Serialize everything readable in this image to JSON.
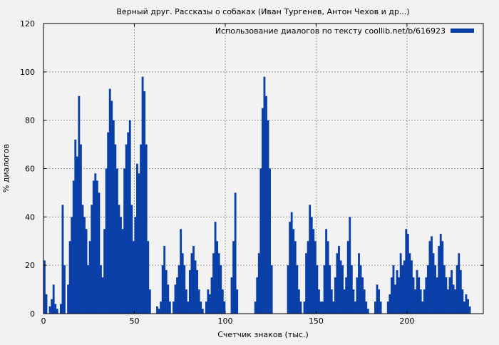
{
  "chart_data": {
    "type": "bar",
    "title": "Верный друг. Рассказы о собаках (Иван Тургенев, Антон Чехов и др...)",
    "xlabel": "Счетчик знаков (тыс.)",
    "ylabel": "% диалогов",
    "xlim": [
      0,
      242
    ],
    "ylim": [
      0,
      120
    ],
    "xticks": [
      0,
      50,
      100,
      150,
      200
    ],
    "yticks": [
      0,
      20,
      40,
      60,
      80,
      100,
      120
    ],
    "grid": true,
    "legend_position": "top-right",
    "bar_color": "#0b3fa8",
    "series": [
      {
        "name": "Использование диалогов по тексту coollib.net/b/616923",
        "x_start": 0,
        "x_step": 1,
        "values": [
          22,
          8,
          0,
          3,
          6,
          12,
          4,
          2,
          0,
          4,
          45,
          20,
          0,
          12,
          30,
          40,
          55,
          72,
          65,
          90,
          70,
          45,
          40,
          35,
          20,
          30,
          45,
          55,
          58,
          55,
          50,
          20,
          15,
          35,
          60,
          75,
          93,
          88,
          80,
          70,
          60,
          45,
          40,
          35,
          60,
          70,
          75,
          80,
          45,
          30,
          40,
          62,
          58,
          70,
          98,
          92,
          70,
          30,
          10,
          0,
          0,
          0,
          3,
          2,
          5,
          20,
          28,
          18,
          12,
          5,
          0,
          5,
          12,
          15,
          20,
          35,
          25,
          20,
          10,
          5,
          18,
          25,
          28,
          22,
          18,
          10,
          5,
          2,
          0,
          5,
          10,
          8,
          15,
          25,
          38,
          30,
          25,
          20,
          10,
          5,
          0,
          0,
          0,
          15,
          30,
          50,
          10,
          0,
          0,
          0,
          0,
          0,
          0,
          0,
          0,
          0,
          5,
          15,
          25,
          60,
          85,
          98,
          90,
          80,
          60,
          20,
          0,
          0,
          0,
          0,
          0,
          0,
          0,
          0,
          20,
          38,
          42,
          35,
          30,
          20,
          10,
          5,
          0,
          5,
          25,
          30,
          45,
          40,
          35,
          30,
          20,
          10,
          5,
          5,
          20,
          35,
          30,
          20,
          10,
          5,
          15,
          25,
          28,
          22,
          20,
          10,
          15,
          30,
          40,
          20,
          10,
          5,
          15,
          25,
          20,
          15,
          10,
          5,
          2,
          0,
          0,
          0,
          5,
          12,
          10,
          5,
          0,
          0,
          0,
          5,
          8,
          15,
          20,
          12,
          18,
          15,
          25,
          20,
          22,
          35,
          33,
          25,
          22,
          15,
          10,
          18,
          15,
          10,
          5,
          10,
          15,
          20,
          30,
          32,
          25,
          20,
          15,
          28,
          33,
          30,
          20,
          15,
          10,
          15,
          18,
          12,
          10,
          20,
          25,
          18,
          10,
          5,
          8,
          6,
          3
        ]
      }
    ]
  }
}
